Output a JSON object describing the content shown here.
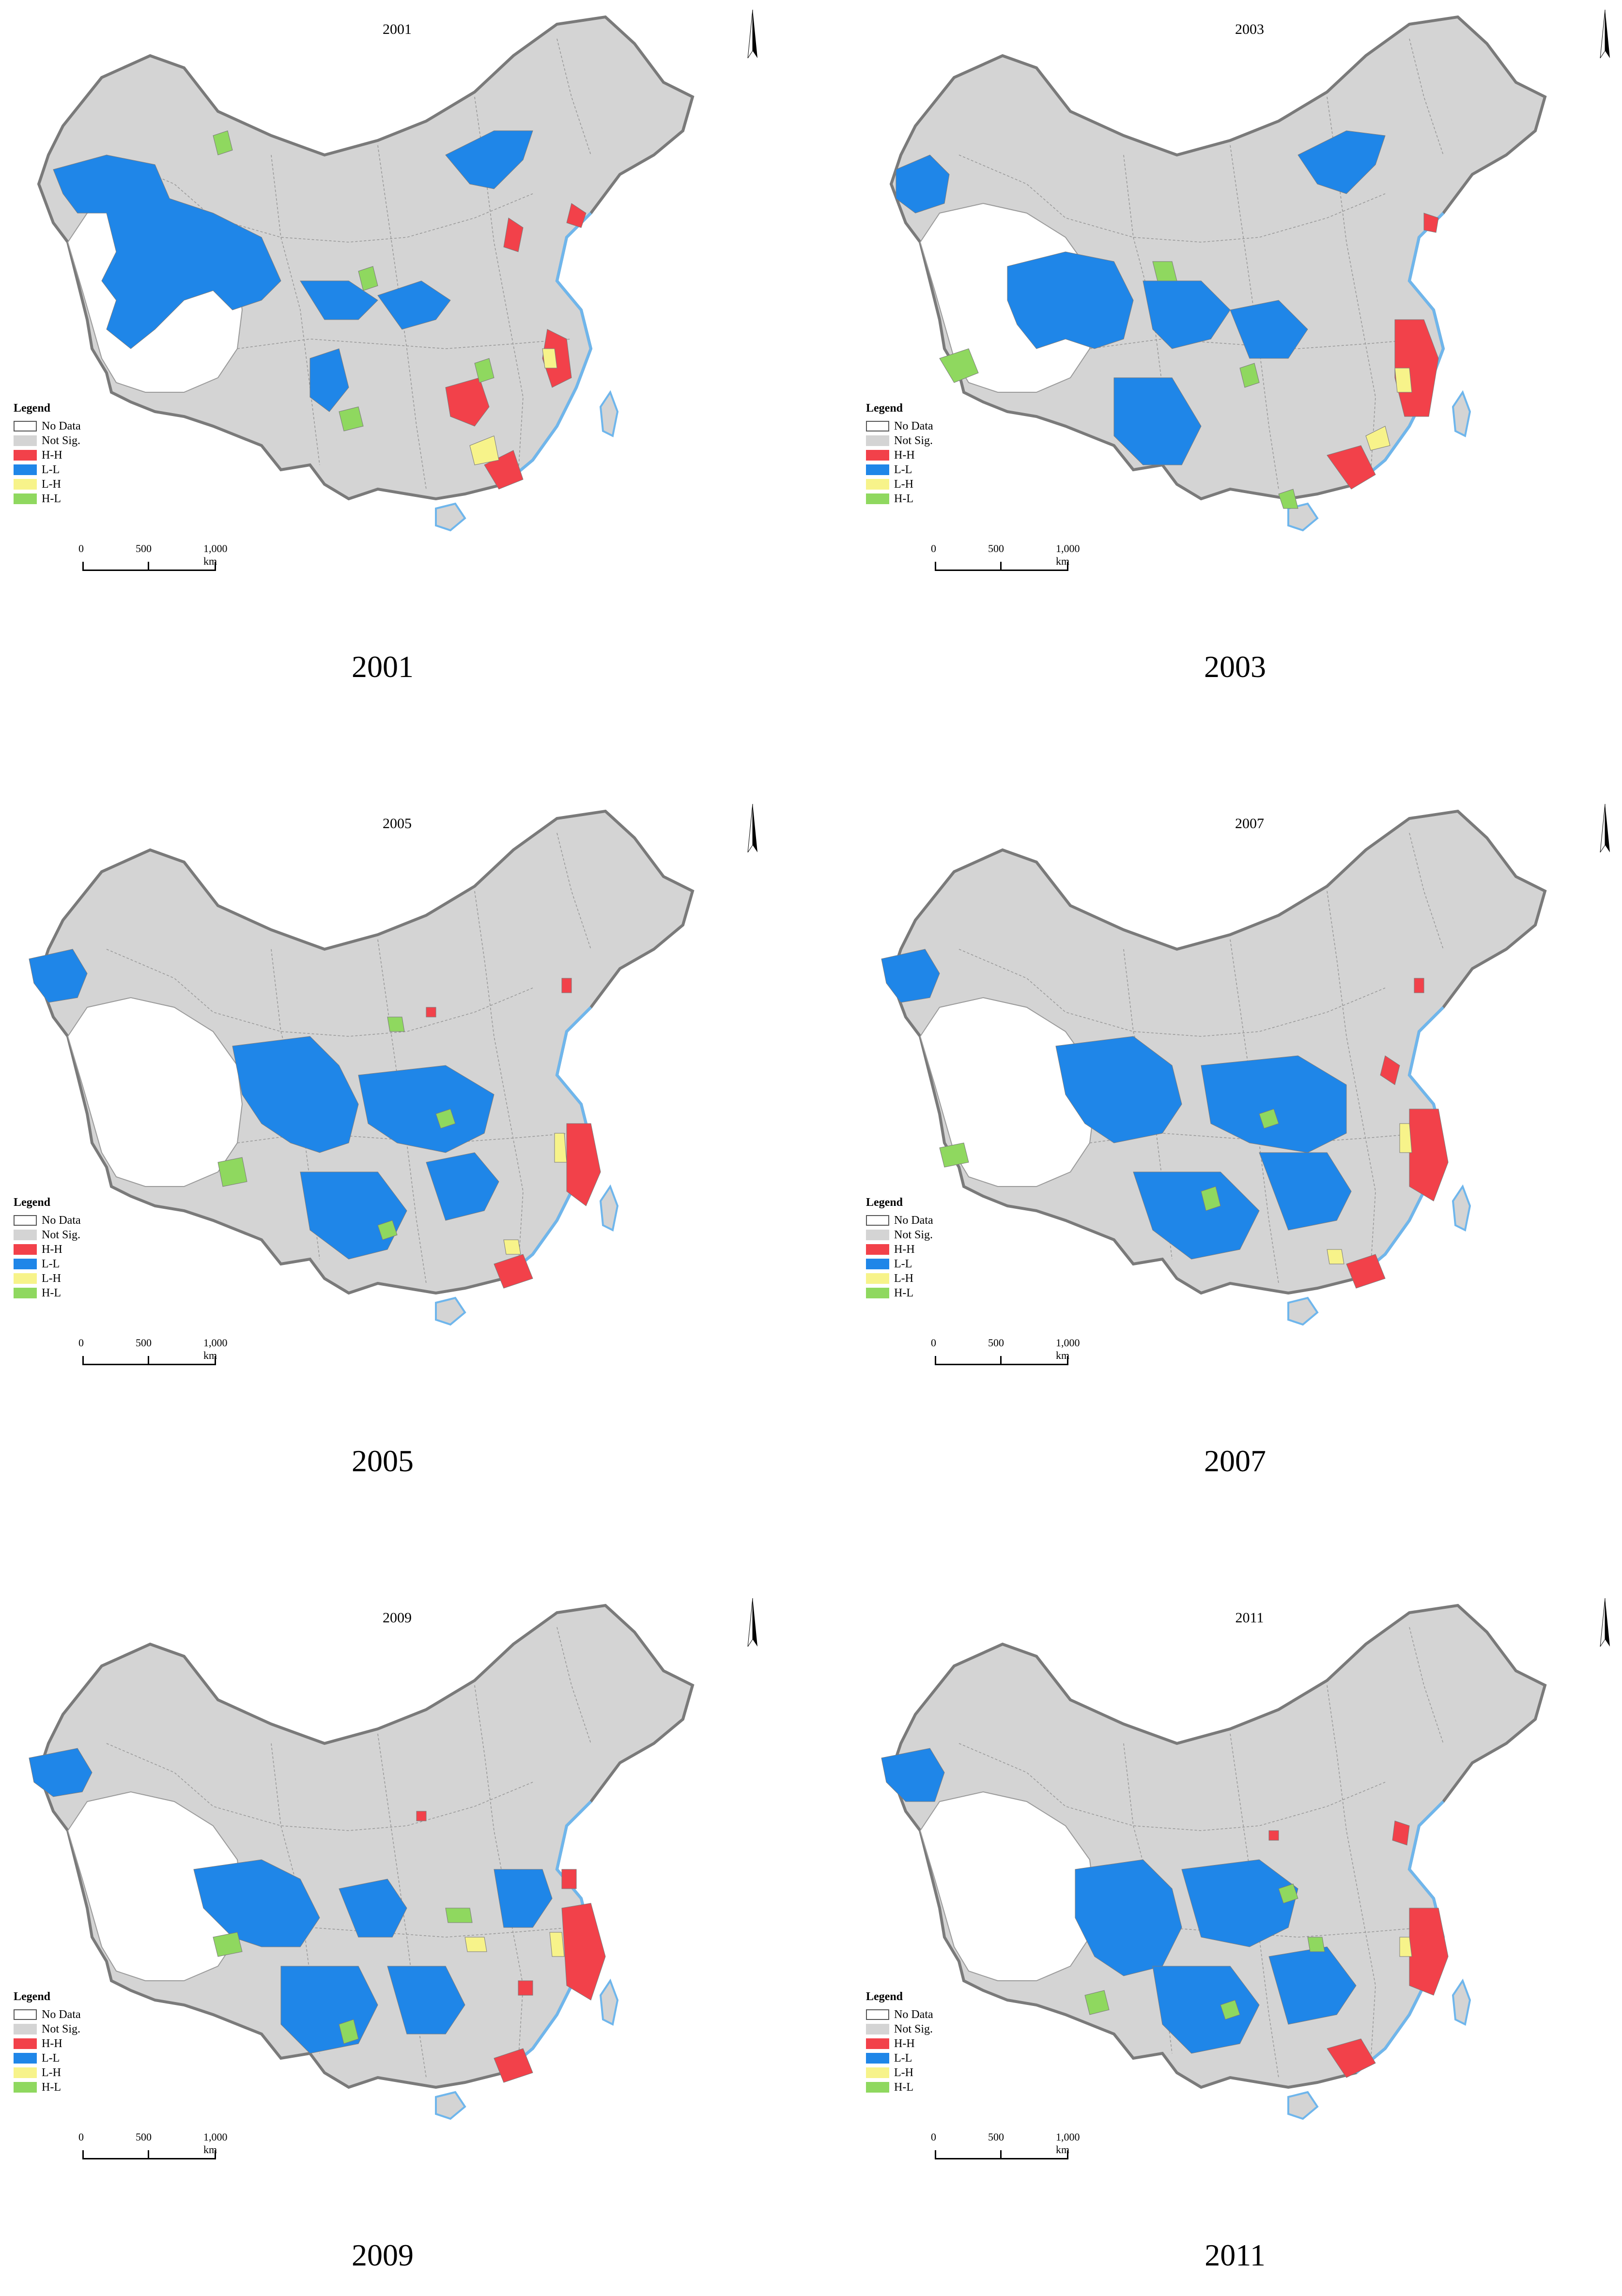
{
  "figure": {
    "panels": [
      {
        "title": "2001",
        "caption": "2001",
        "legend": {
          "title": "Legend",
          "items": [
            {
              "label": "No Data",
              "class": "nodata"
            },
            {
              "label": "Not Sig.",
              "class": "notsig"
            },
            {
              "label": "H-H",
              "class": "hh"
            },
            {
              "label": "L-L",
              "class": "ll"
            },
            {
              "label": "L-H",
              "class": "lh"
            },
            {
              "label": "H-L",
              "class": "hl"
            }
          ]
        },
        "scale_bar": {
          "labels": [
            "0",
            "500",
            "1,000 km"
          ]
        }
      },
      {
        "title": "2003",
        "caption": "2003",
        "legend": {
          "title": "Legend",
          "items": [
            {
              "label": "No Data",
              "class": "nodata"
            },
            {
              "label": "Not Sig.",
              "class": "notsig"
            },
            {
              "label": "H-H",
              "class": "hh"
            },
            {
              "label": "L-L",
              "class": "ll"
            },
            {
              "label": "L-H",
              "class": "lh"
            },
            {
              "label": "H-L",
              "class": "hl"
            }
          ]
        },
        "scale_bar": {
          "labels": [
            "0",
            "500",
            "1,000 km"
          ]
        }
      },
      {
        "title": "2005",
        "caption": "2005",
        "legend": {
          "title": "Legend",
          "items": [
            {
              "label": "No Data",
              "class": "nodata"
            },
            {
              "label": "Not Sig.",
              "class": "notsig"
            },
            {
              "label": "H-H",
              "class": "hh"
            },
            {
              "label": "L-L",
              "class": "ll"
            },
            {
              "label": "L-H",
              "class": "lh"
            },
            {
              "label": "H-L",
              "class": "hl"
            }
          ]
        },
        "scale_bar": {
          "labels": [
            "0",
            "500",
            "1,000 km"
          ]
        }
      },
      {
        "title": "2007",
        "caption": "2007",
        "legend": {
          "title": "Legend",
          "items": [
            {
              "label": "No Data",
              "class": "nodata"
            },
            {
              "label": "Not Sig.",
              "class": "notsig"
            },
            {
              "label": "H-H",
              "class": "hh"
            },
            {
              "label": "L-L",
              "class": "ll"
            },
            {
              "label": "L-H",
              "class": "lh"
            },
            {
              "label": "H-L",
              "class": "hl"
            }
          ]
        },
        "scale_bar": {
          "labels": [
            "0",
            "500",
            "1,000 km"
          ]
        }
      },
      {
        "title": "2009",
        "caption": "2009",
        "legend": {
          "title": "Legend",
          "items": [
            {
              "label": "No Data",
              "class": "nodata"
            },
            {
              "label": "Not Sig.",
              "class": "notsig"
            },
            {
              "label": "H-H",
              "class": "hh"
            },
            {
              "label": "L-L",
              "class": "ll"
            },
            {
              "label": "L-H",
              "class": "lh"
            },
            {
              "label": "H-L",
              "class": "hl"
            }
          ]
        },
        "scale_bar": {
          "labels": [
            "0",
            "500",
            "1,000 km"
          ]
        }
      },
      {
        "title": "2011",
        "caption": "2011",
        "legend": {
          "title": "Legend",
          "items": [
            {
              "label": "No Data",
              "class": "nodata"
            },
            {
              "label": "Not Sig.",
              "class": "notsig"
            },
            {
              "label": "H-H",
              "class": "hh"
            },
            {
              "label": "L-L",
              "class": "ll"
            },
            {
              "label": "L-H",
              "class": "lh"
            },
            {
              "label": "H-L",
              "class": "hl"
            }
          ]
        },
        "scale_bar": {
          "labels": [
            "0",
            "500",
            "1,000 km"
          ]
        }
      }
    ],
    "colors": {
      "no_data": "#ffffff",
      "not_sig": "#d4d4d4",
      "hh": "#f2414a",
      "ll": "#1f86e8",
      "lh": "#f7f38a",
      "hl": "#8fd85f",
      "coast": "#6fb6ec",
      "border": "#7a7a7a"
    }
  }
}
